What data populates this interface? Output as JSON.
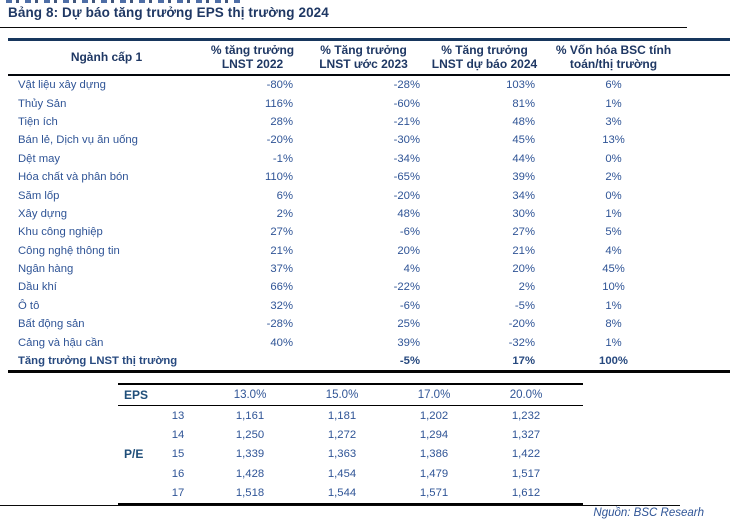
{
  "title": "Bảng 8: Dự báo tăng trưởng EPS thị trường 2024",
  "main_table": {
    "headers": [
      "Ngành cấp 1",
      "% tăng trưởng\nLNST 2022",
      "% Tăng trưởng\nLNST ước 2023",
      "% Tăng trưởng\nLNST dự báo 2024",
      "% Vốn hóa BSC tính\ntoán/thị trường"
    ],
    "rows": [
      {
        "label": "Vật liệu xây dựng",
        "g2022": "-80%",
        "g2023": "-28%",
        "g2024": "103%",
        "cap": "6%"
      },
      {
        "label": "Thủy Sản",
        "g2022": "116%",
        "g2023": "-60%",
        "g2024": "81%",
        "cap": "1%"
      },
      {
        "label": "Tiện ích",
        "g2022": "28%",
        "g2023": "-21%",
        "g2024": "48%",
        "cap": "3%"
      },
      {
        "label": "Bán lẻ, Dịch vụ ăn uống",
        "g2022": "-20%",
        "g2023": "-30%",
        "g2024": "45%",
        "cap": "13%"
      },
      {
        "label": "Dệt may",
        "g2022": "-1%",
        "g2023": "-34%",
        "g2024": "44%",
        "cap": "0%"
      },
      {
        "label": "Hóa chất và phân bón",
        "g2022": "110%",
        "g2023": "-65%",
        "g2024": "39%",
        "cap": "2%"
      },
      {
        "label": "Săm lốp",
        "g2022": "6%",
        "g2023": "-20%",
        "g2024": "34%",
        "cap": "0%"
      },
      {
        "label": "Xây dựng",
        "g2022": "2%",
        "g2023": "48%",
        "g2024": "30%",
        "cap": "1%"
      },
      {
        "label": "Khu công nghiệp",
        "g2022": "27%",
        "g2023": "-6%",
        "g2024": "27%",
        "cap": "5%"
      },
      {
        "label": "Công nghệ thông tin",
        "g2022": "21%",
        "g2023": "20%",
        "g2024": "21%",
        "cap": "4%"
      },
      {
        "label": "Ngân hàng",
        "g2022": "37%",
        "g2023": "4%",
        "g2024": "20%",
        "cap": "45%"
      },
      {
        "label": "Dầu khí",
        "g2022": "66%",
        "g2023": "-22%",
        "g2024": "2%",
        "cap": "10%"
      },
      {
        "label": "Ô tô",
        "g2022": "32%",
        "g2023": "-6%",
        "g2024": "-5%",
        "cap": "1%"
      },
      {
        "label": "Bất động sản",
        "g2022": "-28%",
        "g2023": "25%",
        "g2024": "-20%",
        "cap": "8%"
      },
      {
        "label": "Cảng và hậu cần",
        "g2022": "40%",
        "g2023": "39%",
        "g2024": "-32%",
        "cap": "1%"
      }
    ],
    "total_row": {
      "label": "Tăng trưởng LNST thị trường",
      "g2022": "",
      "g2023": "-5%",
      "g2024": "17%",
      "cap": "100%"
    }
  },
  "pe_table": {
    "corner_label": "EPS",
    "row_group_label": "P/E",
    "group_row_index": 2,
    "col_headers": [
      "13.0%",
      "15.0%",
      "17.0%",
      "20.0%"
    ],
    "rows": [
      {
        "pe": "13",
        "values": [
          "1,161",
          "1,181",
          "1,202",
          "1,232"
        ]
      },
      {
        "pe": "14",
        "values": [
          "1,250",
          "1,272",
          "1,294",
          "1,327"
        ]
      },
      {
        "pe": "15",
        "values": [
          "1,339",
          "1,363",
          "1,386",
          "1,422"
        ]
      },
      {
        "pe": "16",
        "values": [
          "1,428",
          "1,454",
          "1,479",
          "1,517"
        ]
      },
      {
        "pe": "17",
        "values": [
          "1,518",
          "1,544",
          "1,571",
          "1,612"
        ]
      }
    ]
  },
  "source": "Nguồn: BSC Researh",
  "colors": {
    "heading_navy": "#1F3864",
    "body_blue": "#2F5496",
    "table_border_navy": "#17365D",
    "rule_black": "#0A0A0A"
  }
}
